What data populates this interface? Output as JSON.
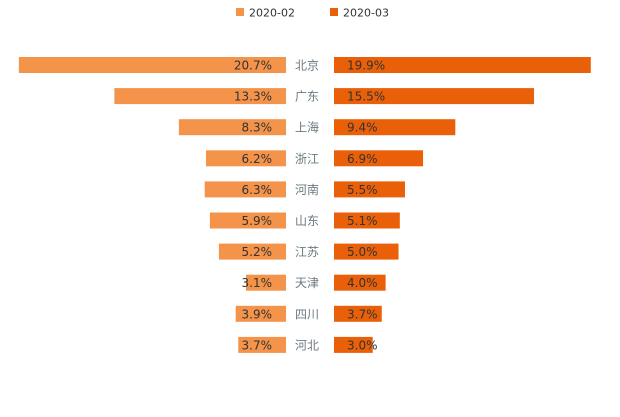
{
  "chart_data": {
    "type": "bar",
    "orientation": "horizontal-butterfly",
    "title": "",
    "categories": [
      "北京",
      "广东",
      "上海",
      "浙江",
      "河南",
      "山东",
      "江苏",
      "天津",
      "四川",
      "河北"
    ],
    "series": [
      {
        "name": "2020-02",
        "color": "#f4934a",
        "side": "left",
        "values": [
          20.7,
          13.3,
          8.3,
          6.2,
          6.3,
          5.9,
          5.2,
          3.1,
          3.9,
          3.7
        ],
        "labels": [
          "20.7%",
          "13.3%",
          "8.3%",
          "6.2%",
          "6.3%",
          "5.9%",
          "5.2%",
          "3.1%",
          "3.9%",
          "3.7%"
        ]
      },
      {
        "name": "2020-03",
        "color": "#ea6008",
        "side": "right",
        "values": [
          19.9,
          15.5,
          9.4,
          6.9,
          5.5,
          5.1,
          5.0,
          4.0,
          3.7,
          3.0
        ],
        "labels": [
          "19.9%",
          "15.5%",
          "9.4%",
          "6.9%",
          "5.5%",
          "5.1%",
          "5.0%",
          "4.0%",
          "3.7%",
          "3.0%"
        ]
      }
    ],
    "xlim": [
      0,
      21
    ],
    "legend_position": "top-center",
    "category_label_color": "#6b7a80",
    "value_label_color": "#333333",
    "grid": false
  }
}
